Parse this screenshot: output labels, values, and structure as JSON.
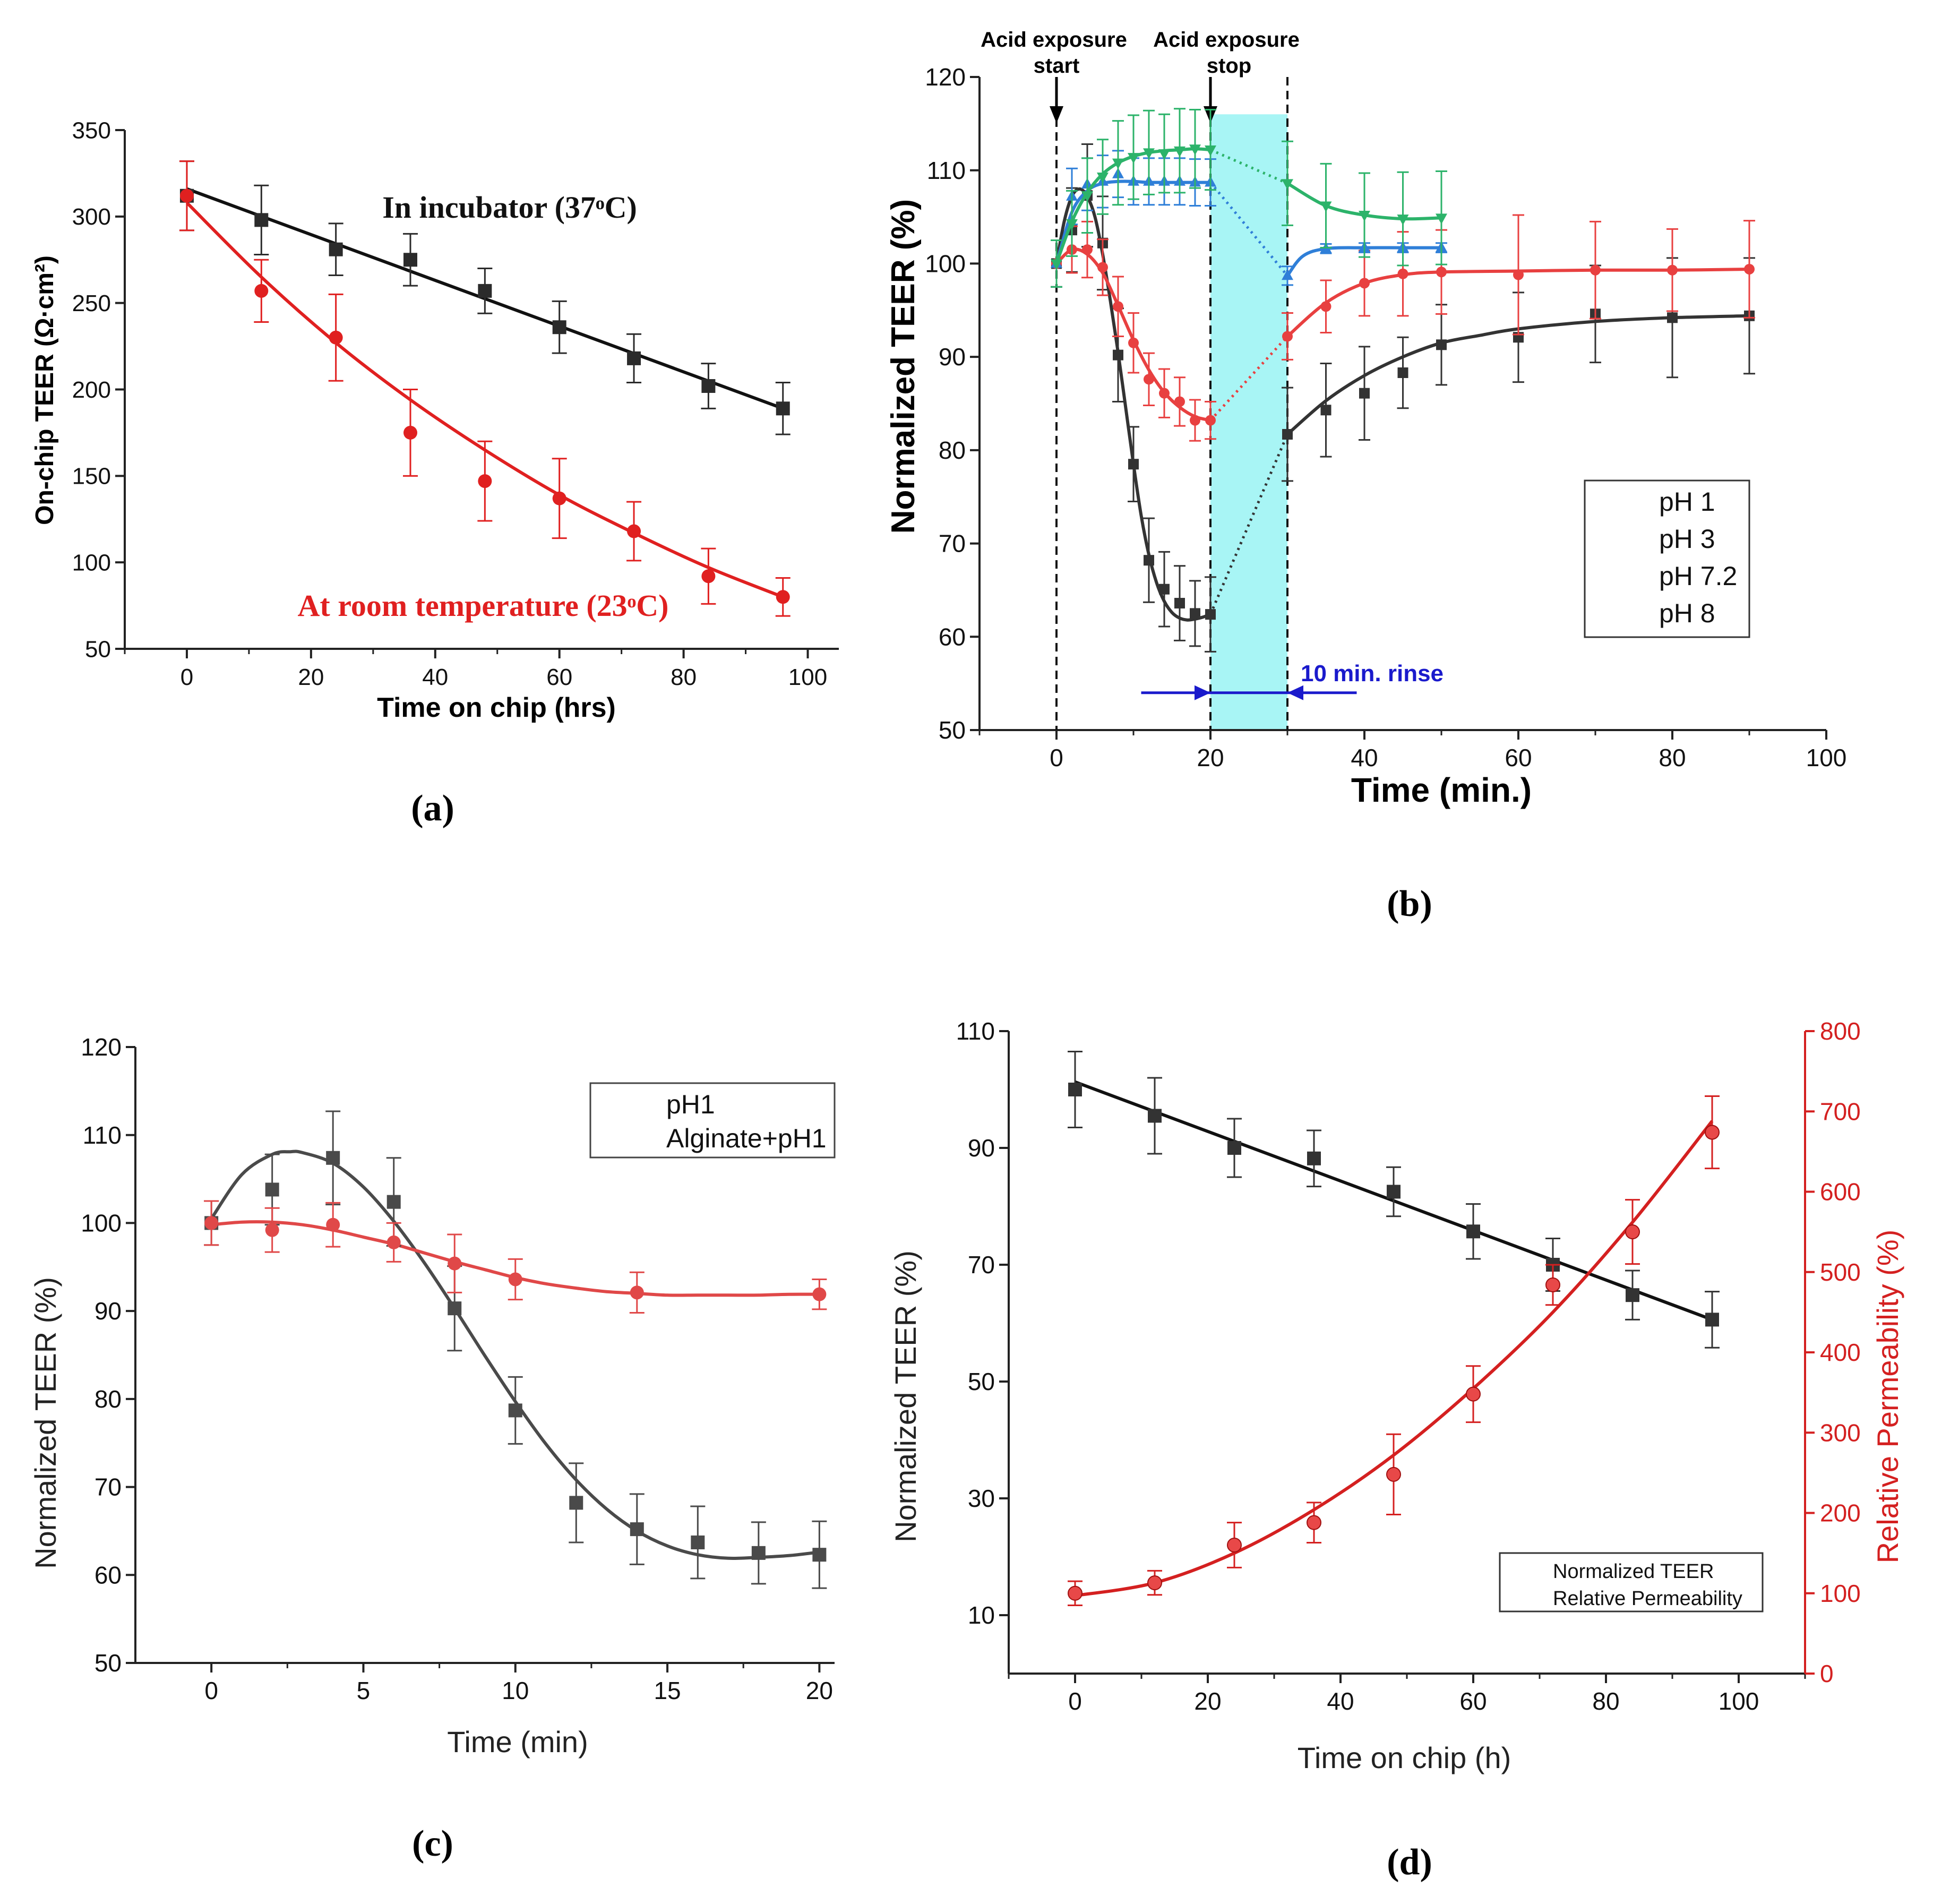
{
  "chart_data": [
    {
      "panel": "a",
      "type": "scatter",
      "caption": "(a)",
      "title": "",
      "xlabel": "Time on chip (hrs)",
      "ylabel": "On-chip TEER (Ω·cm²)",
      "xlim": [
        -10,
        105
      ],
      "ylim": [
        50,
        350
      ],
      "xticks": [
        0,
        20,
        40,
        60,
        80,
        100
      ],
      "yticks": [
        50,
        100,
        150,
        200,
        250,
        300,
        350
      ],
      "annotations": [
        {
          "text": "In incubator (37ᵒC)",
          "color": "#111111"
        },
        {
          "text": "At room temperature (23ᵒC)",
          "color": "#e02020"
        }
      ],
      "series": [
        {
          "name": "In incubator (37ᵒC)",
          "color": "#2b2b2b",
          "marker": "square",
          "x": [
            0,
            12,
            24,
            36,
            48,
            60,
            72,
            84,
            96
          ],
          "y": [
            312,
            298,
            281,
            275,
            257,
            236,
            218,
            202,
            189
          ],
          "err": [
            20,
            20,
            15,
            15,
            13,
            15,
            14,
            13,
            15
          ],
          "fit": {
            "type": "linear",
            "y0": 316,
            "y1": 189
          }
        },
        {
          "name": "At room temperature (23ᵒC)",
          "color": "#e02020",
          "marker": "circle",
          "x": [
            0,
            12,
            24,
            36,
            48,
            60,
            72,
            84,
            96
          ],
          "y": [
            312,
            257,
            230,
            175,
            147,
            137,
            118,
            92,
            80
          ],
          "err": [
            20,
            18,
            25,
            25,
            23,
            23,
            17,
            16,
            11
          ],
          "fit": {
            "type": "curve",
            "x": [
              0,
              12,
              24,
              36,
              48,
              60,
              72,
              84,
              96
            ],
            "y": [
              308,
              265,
              227,
              194,
              165,
              139,
              117,
              97,
              80
            ]
          }
        }
      ]
    },
    {
      "panel": "b",
      "type": "line",
      "caption": "(b)",
      "title": "",
      "xlabel": "Time (min.)",
      "ylabel": "Normalized TEER (%)",
      "xlim": [
        -10,
        100
      ],
      "ylim": [
        50,
        120
      ],
      "xticks": [
        0,
        20,
        40,
        60,
        80,
        100
      ],
      "yticks": [
        50,
        60,
        70,
        80,
        90,
        100,
        110,
        120
      ],
      "legend_position": "right",
      "annotations": {
        "start_label": [
          "Acid  exposure",
          "start"
        ],
        "stop_label": [
          "Acid  exposure",
          "stop"
        ],
        "rinse_label": "10 min. rinse",
        "rinse_interval": [
          20,
          30
        ]
      },
      "series": [
        {
          "name": "pH 1",
          "color": "#333333",
          "marker": "square",
          "x": [
            0,
            2,
            4,
            6,
            8,
            10,
            12,
            14,
            16,
            18,
            20,
            30,
            35,
            40,
            45,
            50,
            60,
            70,
            80,
            90
          ],
          "y": [
            100,
            103.6,
            107.3,
            102.2,
            90.2,
            78.5,
            68.2,
            65.1,
            63.6,
            62.5,
            62.4,
            81.7,
            84.3,
            86.1,
            88.3,
            91.3,
            92.1,
            94.6,
            94.2,
            94.4
          ],
          "err": [
            2.5,
            4.5,
            5.5,
            5,
            5,
            4,
            4.5,
            4,
            4,
            3.5,
            4,
            5,
            5,
            5,
            3.8,
            4.3,
            4.8,
            5.2,
            6.4,
            6.2
          ],
          "fit_x": [
            0,
            1,
            2,
            3,
            4,
            5,
            6,
            7,
            8,
            9,
            10,
            11,
            12,
            13,
            14,
            15,
            16,
            17,
            18,
            19,
            20
          ],
          "fit_y": [
            100,
            104.5,
            107.2,
            108,
            107.2,
            105,
            101,
            96,
            90.5,
            84.5,
            78.5,
            73,
            68.8,
            65.8,
            63.8,
            62.6,
            62,
            61.8,
            61.9,
            62.1,
            62.4
          ],
          "rinse_x": [
            20,
            30
          ],
          "recovery_x": [
            30,
            35,
            40,
            45,
            50,
            55,
            60,
            70,
            80,
            90
          ],
          "recovery_y": [
            81.7,
            85.3,
            88,
            90,
            91.5,
            92.3,
            93,
            93.8,
            94.2,
            94.4
          ]
        },
        {
          "name": "pH 3",
          "color": "#e84040",
          "marker": "circle",
          "x": [
            0,
            2,
            4,
            6,
            8,
            10,
            12,
            14,
            16,
            18,
            20,
            30,
            35,
            40,
            45,
            50,
            60,
            70,
            80,
            90
          ],
          "y": [
            100,
            101.5,
            101.5,
            99.6,
            95.4,
            91.5,
            87.6,
            86.1,
            85.2,
            83.2,
            83.2,
            92.2,
            95.4,
            97.9,
            98.9,
            99.1,
            98.8,
            99.3,
            99.3,
            99.4
          ],
          "err": [
            2.5,
            2.5,
            3,
            3,
            3.2,
            3.2,
            2.8,
            2.6,
            2.6,
            2.2,
            2,
            2.5,
            2.8,
            3.5,
            4.5,
            4.5,
            6.4,
            5.2,
            4.4,
            5.2
          ],
          "fit_x": [
            0,
            2,
            4,
            6,
            8,
            10,
            12,
            14,
            16,
            18,
            20
          ],
          "fit_y": [
            100,
            101.5,
            101,
            99,
            95.5,
            91.8,
            88.6,
            86.2,
            84.6,
            83.6,
            83.2
          ],
          "rinse_x": [
            20,
            30
          ],
          "recovery_x": [
            30,
            35,
            40,
            45,
            50,
            60,
            70,
            80,
            90
          ],
          "recovery_y": [
            92.2,
            95.8,
            97.9,
            98.8,
            99.1,
            99.2,
            99.3,
            99.3,
            99.4
          ]
        },
        {
          "name": "pH 7.2",
          "color": "#2f7fd8",
          "marker": "triangle-up",
          "x": [
            0,
            2,
            4,
            6,
            8,
            10,
            12,
            14,
            16,
            18,
            20,
            30,
            35,
            40,
            45,
            50
          ],
          "y": [
            100,
            107.2,
            108.5,
            108.8,
            109.6,
            108.8,
            108.8,
            108.8,
            108.8,
            108.7,
            108.7,
            98.7,
            101.6,
            101.7,
            101.7,
            101.7
          ],
          "err": [
            2.5,
            3,
            2.8,
            2.8,
            2.5,
            2.5,
            2.5,
            2.5,
            2.5,
            2.5,
            2.5,
            1,
            0.5,
            0.5,
            0.5,
            0.5
          ],
          "fit_x": [
            0,
            2,
            4,
            6,
            8,
            10,
            12,
            14,
            16,
            18,
            20
          ],
          "fit_y": [
            100,
            105.5,
            107.8,
            108.6,
            108.8,
            108.8,
            108.7,
            108.7,
            108.7,
            108.7,
            108.7
          ],
          "rinse_x": [
            20,
            30
          ],
          "recovery_x": [
            30,
            32,
            35,
            40,
            45,
            50
          ],
          "recovery_y": [
            98.7,
            100.8,
            101.6,
            101.7,
            101.7,
            101.7
          ]
        },
        {
          "name": "pH 8",
          "color": "#2cb36a",
          "marker": "triangle-down",
          "x": [
            0,
            2,
            4,
            6,
            8,
            10,
            12,
            14,
            16,
            18,
            20,
            30,
            35,
            40,
            45,
            50
          ],
          "y": [
            100,
            104.3,
            107.3,
            109.3,
            110.8,
            111.4,
            111.9,
            111.8,
            112.1,
            112.3,
            112.2,
            108.6,
            106.2,
            105.2,
            104.8,
            104.9
          ],
          "err": [
            2.5,
            3.5,
            4,
            4,
            4.5,
            4.5,
            4.5,
            4.2,
            4.5,
            4.2,
            4.3,
            4.5,
            4.5,
            4.5,
            5,
            5
          ],
          "fit_x": [
            0,
            2,
            4,
            6,
            8,
            10,
            12,
            14,
            16,
            18,
            20
          ],
          "fit_y": [
            100,
            104.5,
            107.6,
            109.6,
            110.8,
            111.5,
            111.9,
            112.1,
            112.2,
            112.3,
            112.2
          ],
          "rinse_x": [
            20,
            30
          ],
          "recovery_x": [
            30,
            35,
            40,
            45,
            50
          ],
          "recovery_y": [
            108.6,
            106.2,
            105.2,
            104.8,
            104.9
          ]
        }
      ]
    },
    {
      "panel": "c",
      "type": "scatter",
      "caption": "(c)",
      "title": "",
      "xlabel": "Time (min)",
      "ylabel": "Normalized TEER (%)",
      "xlim": [
        -2.5,
        20.5
      ],
      "ylim": [
        50,
        120
      ],
      "xticks": [
        0,
        5,
        10,
        15,
        20
      ],
      "yticks": [
        50,
        60,
        70,
        80,
        90,
        100,
        110,
        120
      ],
      "legend_position": "top-right",
      "series": [
        {
          "name": "pH1",
          "color": "#4a4a4a",
          "marker": "square",
          "x": [
            0,
            2,
            4,
            6,
            8,
            10,
            12,
            14,
            16,
            18,
            20
          ],
          "y": [
            100,
            103.8,
            107.4,
            102.4,
            90.3,
            78.7,
            68.2,
            65.2,
            63.7,
            62.5,
            62.3
          ],
          "err": [
            2.5,
            4,
            5.3,
            5,
            4.8,
            3.8,
            4.5,
            4,
            4.1,
            3.5,
            3.8
          ],
          "fit_x": [
            0,
            1,
            2,
            2.6,
            3,
            4,
            5,
            6,
            7,
            8,
            9,
            10,
            11,
            12,
            13,
            14,
            15,
            16,
            17,
            18,
            19,
            20
          ],
          "fit_y": [
            100.5,
            105.5,
            107.8,
            108.1,
            108,
            106.8,
            104.1,
            100.2,
            95.5,
            90.3,
            84.9,
            79.7,
            74.9,
            70.8,
            67.5,
            65,
            63.3,
            62.3,
            61.9,
            62,
            62.2,
            62.6
          ]
        },
        {
          "name": "Alginate+pH1",
          "color": "#e04848",
          "marker": "circle",
          "x": [
            0,
            2,
            4,
            6,
            8,
            10,
            14,
            20
          ],
          "y": [
            100,
            99.2,
            99.8,
            97.8,
            95.4,
            93.6,
            92.1,
            91.9
          ],
          "err": [
            2.5,
            2.5,
            2.5,
            2.2,
            3.3,
            2.3,
            2.3,
            1.7
          ],
          "fit_x": [
            0,
            1,
            2,
            3,
            4,
            5,
            6,
            7,
            8,
            9,
            10,
            11,
            12,
            13,
            14,
            15,
            16,
            17,
            18,
            19,
            20
          ],
          "fit_y": [
            99.8,
            100.1,
            100.1,
            99.8,
            99.2,
            98.4,
            97.6,
            96.6,
            95.6,
            94.7,
            93.8,
            93.1,
            92.6,
            92.2,
            92,
            91.8,
            91.8,
            91.8,
            91.8,
            91.9,
            91.9
          ]
        }
      ]
    },
    {
      "panel": "d",
      "type": "scatter",
      "caption": "(d)",
      "title": "",
      "xlabel": "Time on chip (h)",
      "ylabel": "Normalized TEER (%)",
      "ylabel_right": "Relative Permeability (%)",
      "xlim": [
        -10,
        110
      ],
      "ylim": [
        0,
        110
      ],
      "ylim_right": [
        0,
        800
      ],
      "xticks": [
        0,
        20,
        40,
        60,
        80,
        100
      ],
      "yticks": [
        10,
        30,
        50,
        70,
        90,
        110
      ],
      "yticks_right": [
        0,
        100,
        200,
        300,
        400,
        500,
        600,
        700,
        800
      ],
      "legend_position": "bottom-right",
      "series": [
        {
          "name": "Normalized TEER",
          "axis": "left",
          "color": "#333333",
          "marker": "square",
          "x": [
            0,
            12,
            24,
            36,
            48,
            60,
            72,
            84,
            96
          ],
          "y": [
            100,
            95.5,
            90,
            88.2,
            82.5,
            75.7,
            70,
            64.8,
            60.6
          ],
          "err": [
            6.5,
            6.5,
            5,
            4.8,
            4.2,
            4.7,
            4.5,
            4.2,
            4.8
          ],
          "fit": {
            "type": "linear",
            "y0": 101.3,
            "y1": 60.6
          }
        },
        {
          "name": "Relative Permeability",
          "axis": "right",
          "color": "#e02828",
          "marker": "circle",
          "x": [
            0,
            12,
            24,
            36,
            48,
            60,
            72,
            84,
            96
          ],
          "y": [
            100,
            113,
            160,
            188,
            248,
            348,
            484,
            550,
            674
          ],
          "err": [
            15,
            15,
            28,
            25,
            50,
            35,
            25,
            40,
            45
          ],
          "fit": {
            "type": "curve",
            "x": [
              0,
              12,
              24,
              36,
              48,
              60,
              72,
              84,
              96
            ],
            "y": [
              97,
              113,
              150,
              204,
              272,
              355,
              450,
              562,
              688
            ]
          }
        }
      ]
    }
  ]
}
